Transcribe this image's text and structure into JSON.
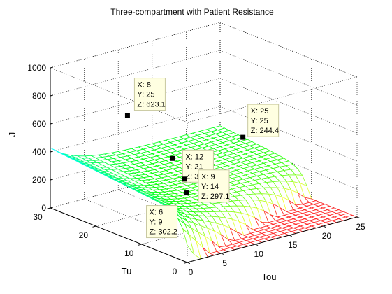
{
  "chart_data": {
    "type": "surface",
    "title": "Three-compartment with Patient Resistance",
    "xlabel": "Tou",
    "ylabel": "Tu",
    "zlabel": "J",
    "x_ticks": [
      "0",
      "5",
      "10",
      "15",
      "20",
      "25"
    ],
    "y_ticks": [
      "0",
      "10",
      "20",
      "30"
    ],
    "z_ticks": [
      "0",
      "200",
      "400",
      "600",
      "800",
      "1000"
    ],
    "xlim": [
      0,
      25
    ],
    "ylim": [
      0,
      30
    ],
    "zlim": [
      0,
      1000
    ],
    "grid": true,
    "datatips": [
      {
        "x": 8,
        "y": 25,
        "z": 623.1,
        "x_text": "X: 8",
        "y_text": "Y: 25",
        "z_text": "Z: 623.1"
      },
      {
        "x": 12,
        "y": 21,
        "z": 314.7,
        "x_text": "X: 12",
        "y_text": "Y: 21",
        "z_text": "Z: 314.7"
      },
      {
        "x": 9,
        "y": 14,
        "z": 297.1,
        "x_text": "X: 9",
        "y_text": "Y: 14",
        "z_text": "Z: 297.1"
      },
      {
        "x": 6,
        "y": 9,
        "z": 302.2,
        "x_text": "X: 6",
        "y_text": "Y: 9",
        "z_text": "Z: 302.2"
      },
      {
        "x": 25,
        "y": 25,
        "z": 244.4,
        "x_text": "X: 25",
        "y_text": "Y: 25",
        "z_text": "Z: 244.4"
      }
    ]
  }
}
